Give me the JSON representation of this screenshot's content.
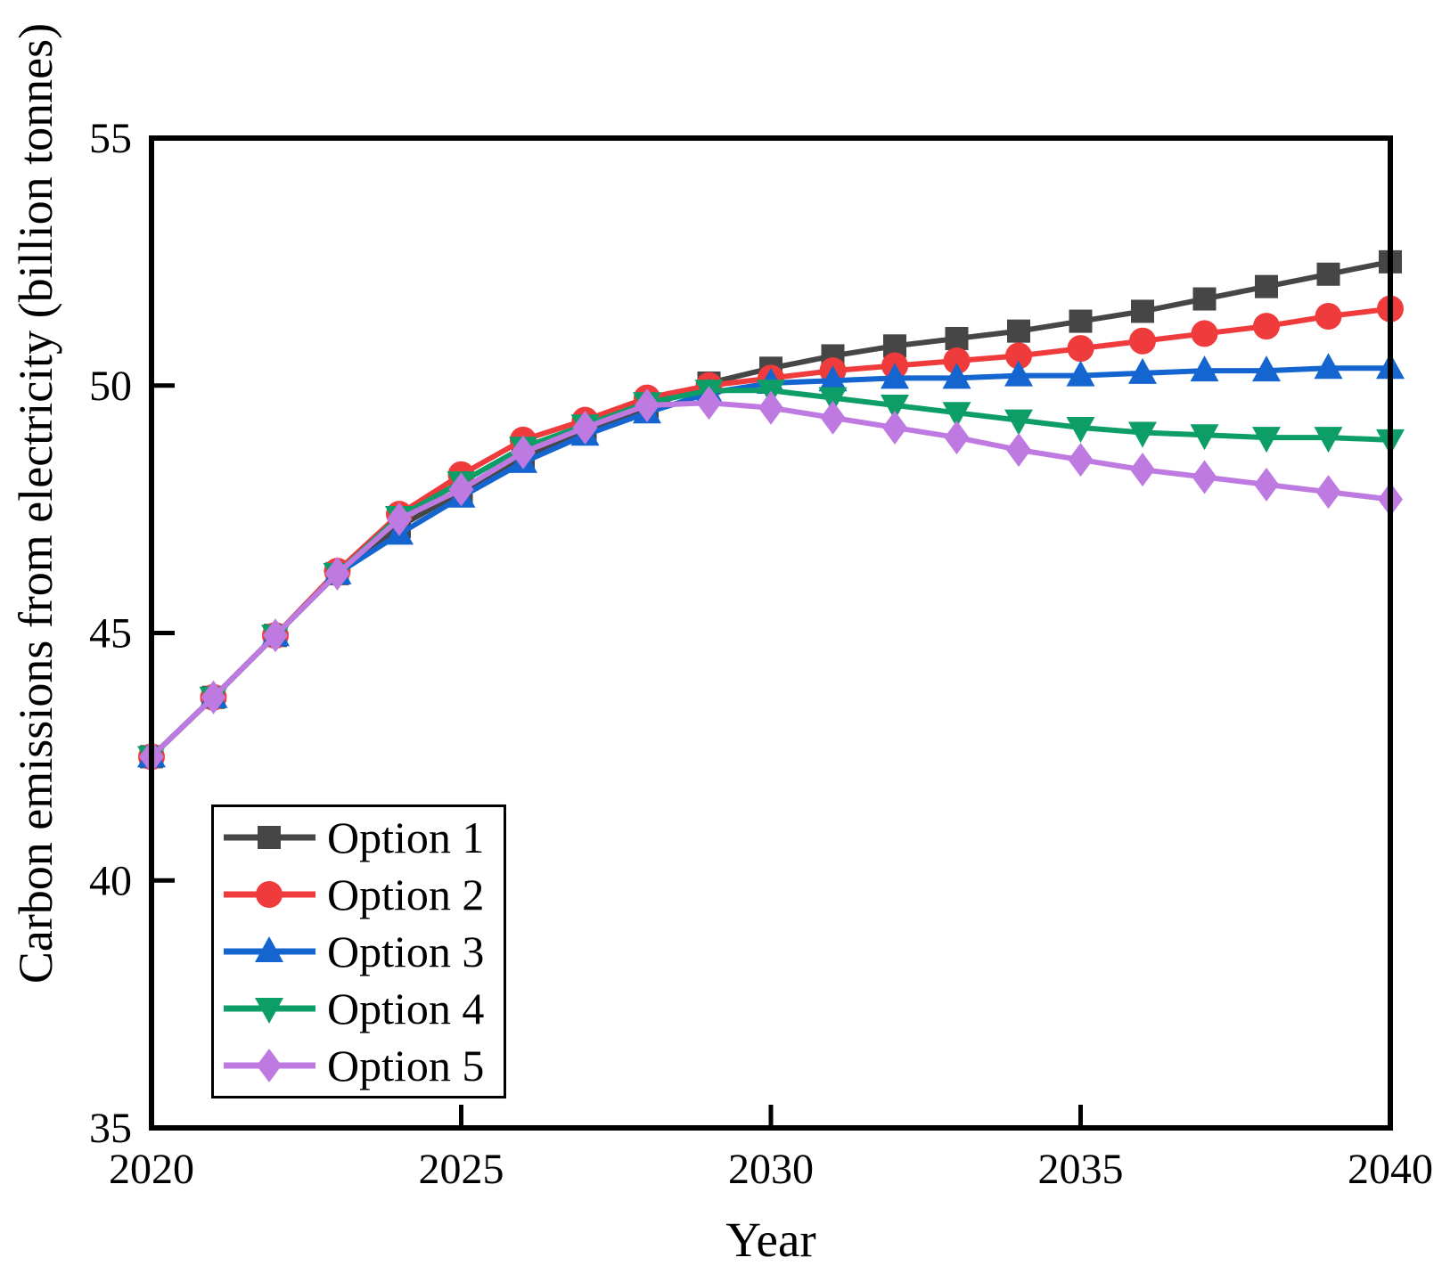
{
  "chart_data": {
    "type": "line",
    "title": "",
    "xlabel": "Year",
    "ylabel": "Carbon emissions from electricity (billion tonnes)",
    "x": [
      2020,
      2021,
      2022,
      2023,
      2024,
      2025,
      2026,
      2027,
      2028,
      2029,
      2030,
      2031,
      2032,
      2033,
      2034,
      2035,
      2036,
      2037,
      2038,
      2039,
      2040
    ],
    "xlim": [
      2020,
      2040
    ],
    "ylim": [
      35,
      55
    ],
    "xticks": [
      2020,
      2025,
      2030,
      2035,
      2040
    ],
    "yticks": [
      35,
      40,
      45,
      50,
      55
    ],
    "grid": false,
    "legend": {
      "position": "lower-left-inside",
      "border": true
    },
    "series": [
      {
        "name": "Option 1",
        "color": "#464646",
        "marker": "square",
        "values": [
          42.5,
          43.7,
          44.95,
          46.2,
          47.15,
          47.85,
          48.55,
          49.1,
          49.55,
          50.05,
          50.35,
          50.6,
          50.8,
          50.95,
          51.1,
          51.3,
          51.5,
          51.75,
          52.0,
          52.25,
          52.5
        ]
      },
      {
        "name": "Option 2",
        "color": "#f03b3d",
        "marker": "circle",
        "values": [
          42.5,
          43.7,
          44.95,
          46.25,
          47.4,
          48.2,
          48.9,
          49.3,
          49.75,
          50.0,
          50.15,
          50.3,
          50.4,
          50.5,
          50.6,
          50.75,
          50.9,
          51.05,
          51.2,
          51.4,
          51.55
        ]
      },
      {
        "name": "Option 3",
        "color": "#1465cf",
        "marker": "triangle-up",
        "values": [
          42.5,
          43.7,
          44.95,
          46.2,
          47.0,
          47.75,
          48.45,
          49.0,
          49.45,
          49.85,
          50.05,
          50.1,
          50.15,
          50.15,
          50.2,
          50.2,
          50.25,
          50.3,
          50.3,
          50.35,
          50.35
        ]
      },
      {
        "name": "Option 4",
        "color": "#0d9e68",
        "marker": "triangle-down",
        "values": [
          42.5,
          43.7,
          44.95,
          46.2,
          47.35,
          48.05,
          48.75,
          49.2,
          49.65,
          49.9,
          49.9,
          49.75,
          49.6,
          49.45,
          49.3,
          49.15,
          49.05,
          49.0,
          48.95,
          48.95,
          48.9
        ]
      },
      {
        "name": "Option 5",
        "color": "#be7ae0",
        "marker": "diamond",
        "values": [
          42.5,
          43.7,
          44.95,
          46.2,
          47.3,
          47.9,
          48.65,
          49.15,
          49.6,
          49.65,
          49.55,
          49.35,
          49.15,
          48.95,
          48.7,
          48.5,
          48.3,
          48.15,
          48.0,
          47.85,
          47.7
        ]
      }
    ]
  }
}
